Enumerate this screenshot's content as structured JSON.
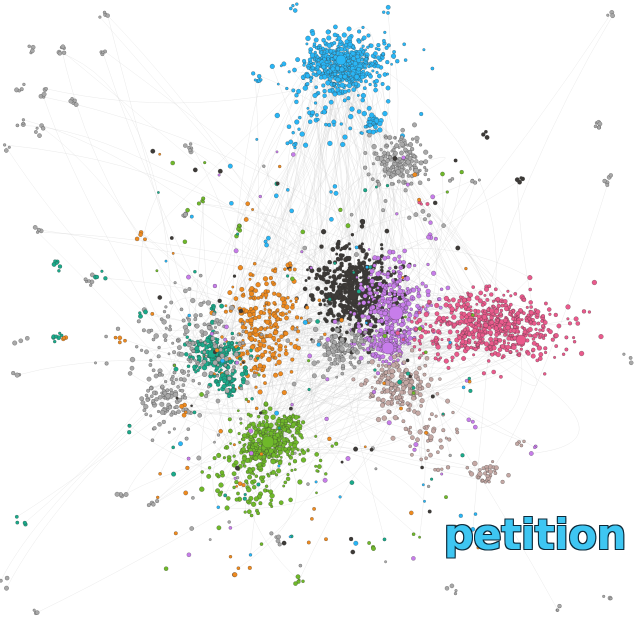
{
  "graph": {
    "keyword": "petition",
    "background": "#ffffff",
    "edge_color": "#c9c9c9",
    "node_outline": "#333333",
    "communities": [
      {
        "name": "cyan-cluster",
        "color": "#29b6f6"
      },
      {
        "name": "dark-gray-cluster",
        "color": "#3d3a37"
      },
      {
        "name": "violet-cluster",
        "color": "#c77dea"
      },
      {
        "name": "pink-cluster",
        "color": "#ea5a8c"
      },
      {
        "name": "orange-cluster",
        "color": "#ee8a1f"
      },
      {
        "name": "teal-cluster",
        "color": "#1aaa8a"
      },
      {
        "name": "green-cluster",
        "color": "#6fb82a"
      },
      {
        "name": "rose-gray-cluster",
        "color": "#c4a8a4"
      },
      {
        "name": "gray-cluster",
        "color": "#a8a8a8"
      }
    ]
  }
}
